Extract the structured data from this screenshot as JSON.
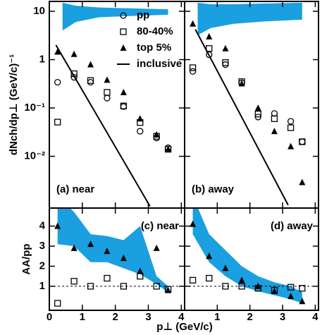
{
  "chart_data": [
    {
      "type": "scatter",
      "log_y": true,
      "xlim": [
        0,
        4.1
      ],
      "ylim": [
        0.00085,
        16
      ],
      "xticks": [
        0,
        1,
        2,
        3,
        4
      ],
      "xtick_labels": false,
      "yticks": [
        {
          "value": 10,
          "label": "10"
        },
        {
          "value": 1,
          "label": "1"
        },
        {
          "value": 0.1,
          "label": "10⁻¹"
        },
        {
          "value": 0.01,
          "label": "10⁻²"
        }
      ],
      "ytick_labels": true,
      "ylabel": "dNch/dp⊥ (GeV/c)⁻¹",
      "panel_label": "(a) near",
      "panel_label_corner": "lower left",
      "legend": true,
      "x": [
        0.25,
        0.75,
        1.25,
        1.75,
        2.25,
        2.75,
        3.25,
        3.6
      ],
      "band": {
        "color": "#1a9fe0",
        "x": [
          0.4,
          0.8,
          1.5,
          2.5,
          3.6
        ],
        "upper": [
          15,
          13,
          12,
          11.5,
          11
        ],
        "lower": [
          4,
          6,
          7.5,
          8,
          8.5
        ]
      },
      "series": [
        {
          "name": "pp",
          "marker": "circle",
          "color": "#000000",
          "values": [
            0.34,
            0.43,
            0.34,
            0.16,
            0.107,
            0.033,
            0.024,
            0.015
          ]
        },
        {
          "name": "80-40%",
          "marker": "square",
          "color": "#000000",
          "values": [
            0.051,
            0.51,
            0.37,
            0.21,
            0.11,
            0.05,
            0.026,
            0.014
          ]
        },
        {
          "name": "top 5%",
          "marker": "triangle",
          "color": "#000000",
          "values": [
            1.45,
            1.3,
            0.79,
            0.38,
            0.21,
            0.06,
            0.028,
            0.014
          ]
        },
        {
          "name": "inclusive",
          "marker": "line",
          "color": "#000000",
          "x": [
            0.2,
            3.05
          ],
          "values": [
            2.0,
            0.00093
          ]
        }
      ]
    },
    {
      "type": "scatter",
      "log_y": true,
      "xlim": [
        0,
        4.1
      ],
      "ylim": [
        0.00085,
        16
      ],
      "xticks": [
        0,
        1,
        2,
        3,
        4
      ],
      "xtick_labels": false,
      "yticks": [
        10,
        1,
        0.1,
        0.01
      ],
      "ytick_labels": false,
      "panel_label": "(b) away",
      "panel_label_corner": "lower left",
      "legend": false,
      "x": [
        0.25,
        0.75,
        1.25,
        1.75,
        2.25,
        2.75,
        3.25,
        3.6
      ],
      "band": {
        "color": "#1a9fe0",
        "x": [
          0.4,
          0.8,
          1.5,
          2.5,
          3.6
        ],
        "upper": [
          15,
          14,
          14,
          14.5,
          15
        ],
        "lower": [
          3.2,
          4.5,
          5.5,
          6.2,
          6.7
        ]
      },
      "series": [
        {
          "marker": "circle",
          "color": "#000000",
          "values": [
            0.57,
            1.26,
            0.79,
            0.33,
            0.065,
            0.077,
            0.053,
            0.02
          ]
        },
        {
          "marker": "square",
          "color": "#000000",
          "values": [
            0.68,
            1.7,
            0.87,
            0.35,
            0.075,
            0.06,
            0.039,
            0.02
          ]
        },
        {
          "marker": "triangle",
          "color": "#000000",
          "values": [
            5.5,
            3.0,
            1.7,
            0.32,
            0.1,
            0.033,
            0.016,
            0.0029
          ]
        },
        {
          "marker": "line",
          "color": "#000000",
          "x": [
            0.33,
            3.17
          ],
          "values": [
            4.2,
            0.00098
          ]
        }
      ]
    },
    {
      "type": "scatter",
      "log_y": false,
      "xlim": [
        0,
        4.1
      ],
      "ylim": [
        -0.2,
        4.9
      ],
      "xticks": [
        0,
        1,
        2,
        3,
        4
      ],
      "xtick_labels": true,
      "yticks": [
        1,
        2,
        3,
        4
      ],
      "ytick_labels": true,
      "ref_line": 1,
      "ylabel": "AA/pp",
      "xlabel": "p⊥ (GeV/c)",
      "panel_label": "(c) near",
      "panel_label_corner": "upper right",
      "legend": false,
      "x": [
        0.25,
        0.75,
        1.25,
        1.75,
        2.25,
        2.75,
        3.25,
        3.6
      ],
      "band": {
        "color": "#1a9fe0",
        "x": [
          0.25,
          0.75,
          1.25,
          1.75,
          2.25,
          2.75,
          3.25,
          3.6
        ],
        "upper": [
          5.5,
          4.7,
          3.6,
          3.5,
          3.3,
          4.0,
          1.5,
          1.0
        ],
        "lower": [
          3.1,
          3.0,
          2.2,
          2.2,
          1.9,
          1.6,
          1.1,
          0.7
        ]
      },
      "series": [
        {
          "marker": "square",
          "color": "#000000",
          "values": [
            0.15,
            1.25,
            1.0,
            1.4,
            1.0,
            1.5,
            1.0,
            0.85
          ]
        },
        {
          "marker": "triangle",
          "color": "#000000",
          "values": [
            4.0,
            2.9,
            3.1,
            2.75,
            2.4,
            1.75,
            2.9,
            0.8
          ]
        }
      ]
    },
    {
      "type": "scatter",
      "log_y": false,
      "xlim": [
        0,
        4.1
      ],
      "ylim": [
        -0.2,
        4.9
      ],
      "xticks": [
        1,
        2,
        3,
        4
      ],
      "xtick_labels": true,
      "yticks": [
        1,
        2,
        3,
        4
      ],
      "ytick_labels": false,
      "ref_line": 1,
      "panel_label": "(d) away",
      "panel_label_corner": "upper right",
      "legend": false,
      "x": [
        0.25,
        0.75,
        1.25,
        1.75,
        2.25,
        2.75,
        3.25,
        3.6
      ],
      "band": {
        "color": "#1a9fe0",
        "x": [
          0.25,
          0.75,
          1.25,
          1.75,
          2.25,
          2.75,
          3.25,
          3.6
        ],
        "upper": [
          5.5,
          3.6,
          2.8,
          2.0,
          1.5,
          1.2,
          1.0,
          0.7
        ],
        "lower": [
          3.6,
          2.2,
          1.5,
          1.0,
          0.75,
          0.55,
          0.35,
          0.15
        ]
      },
      "series": [
        {
          "marker": "square",
          "color": "#000000",
          "values": [
            1.3,
            1.4,
            1.0,
            1.0,
            0.9,
            0.8,
            0.95,
            0.9
          ]
        },
        {
          "marker": "triangle",
          "color": "#000000",
          "values": [
            4.1,
            2.5,
            1.9,
            1.3,
            1.0,
            0.75,
            0.5,
            0.25
          ]
        }
      ]
    }
  ]
}
